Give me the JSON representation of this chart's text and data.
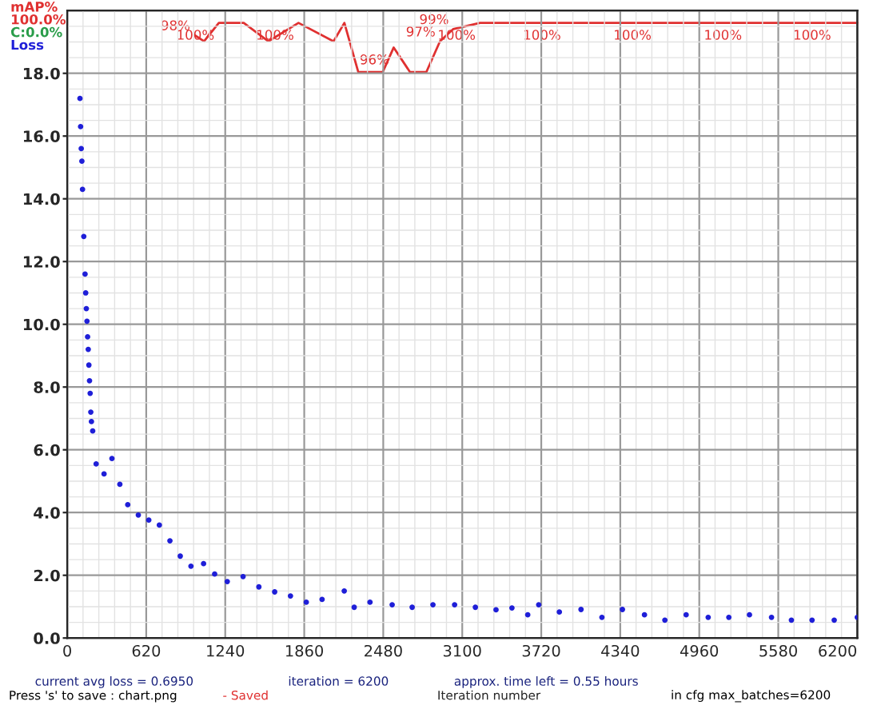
{
  "chart_data": {
    "type": "scatter",
    "xlabel": "Iteration number",
    "x": [
      100,
      105,
      110,
      115,
      120,
      130,
      140,
      145,
      150,
      155,
      160,
      165,
      170,
      175,
      180,
      185,
      190,
      200,
      227,
      289,
      351,
      413,
      475,
      558,
      640,
      723,
      806,
      887,
      971,
      1070,
      1157,
      1256,
      1380,
      1504,
      1628,
      1752,
      1876,
      2000,
      2174,
      2252,
      2376,
      2550,
      2707,
      2870,
      3040,
      3203,
      3365,
      3490,
      3614,
      3700,
      3862,
      4032,
      4196,
      4357,
      4530,
      4690,
      4857,
      5030,
      5192,
      5354,
      5527,
      5683,
      5845,
      6019,
      6200
    ],
    "series": [
      {
        "name": "Loss",
        "color": "#1f1fd8",
        "marker": "circle",
        "values": [
          17.2,
          16.3,
          15.6,
          15.2,
          14.3,
          12.8,
          11.6,
          11.0,
          10.5,
          10.1,
          9.6,
          9.2,
          8.7,
          8.2,
          7.8,
          7.2,
          6.9,
          6.6,
          5.55,
          5.23,
          5.72,
          4.9,
          4.25,
          3.92,
          3.76,
          3.6,
          3.1,
          2.61,
          2.29,
          2.37,
          2.04,
          1.8,
          1.96,
          1.63,
          1.47,
          1.34,
          1.14,
          1.23,
          1.5,
          0.98,
          1.14,
          1.06,
          0.98,
          1.06,
          1.06,
          0.98,
          0.9,
          0.96,
          0.74,
          1.06,
          0.83,
          0.91,
          0.66,
          0.91,
          0.74,
          0.57,
          0.74,
          0.66,
          0.66,
          0.74,
          0.66,
          0.57,
          0.57,
          0.57,
          0.66
        ]
      },
      {
        "name": "mAP%",
        "color": "#e03030",
        "type": "line",
        "axis": "y2",
        "marker": "none",
        "x": [
          1000,
          1074,
          1190,
          1385,
          1578,
          1815,
          2090,
          2175,
          2284,
          2476,
          2562,
          2690,
          2818,
          2925,
          3030,
          3240,
          3910,
          4620,
          5330,
          6030,
          6200
        ],
        "values": [
          98,
          97,
          100,
          100,
          97,
          100,
          97,
          100,
          92,
          92,
          96,
          92,
          92,
          97,
          99,
          100,
          100,
          100,
          100,
          100,
          100
        ],
        "value_labels": [
          "98%",
          null,
          "100%",
          null,
          null,
          "100%",
          null,
          null,
          null,
          null,
          "96%",
          null,
          null,
          "97%",
          "99%",
          "100%",
          "100%",
          "100%",
          "100%",
          "100%",
          null
        ]
      }
    ],
    "xlim": [
      0,
      6200
    ],
    "xticks": [
      0,
      620,
      1240,
      1860,
      2480,
      3100,
      3720,
      4340,
      4960,
      5580,
      6200
    ],
    "ylim": [
      0,
      20
    ],
    "yticks": [
      {
        "value": 0,
        "label": "0.0"
      },
      {
        "value": 2,
        "label": "2.0"
      },
      {
        "value": 4,
        "label": "4.0"
      },
      {
        "value": 6,
        "label": "6.0"
      },
      {
        "value": 8,
        "label": "8.0"
      },
      {
        "value": 10,
        "label": "10.0"
      },
      {
        "value": 12,
        "label": "12.0"
      },
      {
        "value": 14,
        "label": "14.0"
      },
      {
        "value": 16,
        "label": "16.0"
      },
      {
        "value": 18,
        "label": "18.0"
      }
    ],
    "y2lim": [
      0,
      102
    ],
    "tick_labels": [
      "x",
      "y"
    ],
    "grid": true,
    "legend": "top left",
    "annotations": [
      "100.0%",
      "C:0.0%",
      "current avg loss = 0.6950",
      "iteration = 6200",
      "approx. time left = 0.55 hours",
      "Press 's' to save : chart.png",
      "- Saved",
      "in cfg max_batches=6200"
    ]
  }
}
